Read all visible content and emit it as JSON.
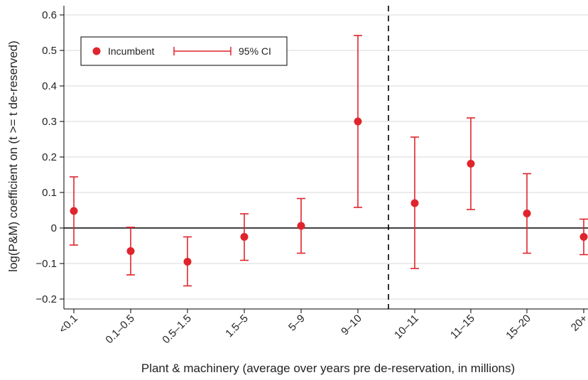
{
  "chart_data": {
    "type": "scatter",
    "title": "",
    "xlabel": "Plant & machinery (average over years pre de-reservation, in millions)",
    "ylabel": "log(P&M) coefficient on (t >= t de-reserved)",
    "categories": [
      "<0.1",
      "0.1–0.5",
      "0.5–1.5",
      "1.5–5",
      "5–9",
      "9–10",
      "10–11",
      "11–15",
      "15–20",
      "20+"
    ],
    "series": [
      {
        "name": "Incumbent",
        "values": [
          0.048,
          -0.065,
          -0.095,
          -0.025,
          0.006,
          0.3,
          0.07,
          0.181,
          0.041,
          -0.025
        ],
        "ci_low": [
          -0.048,
          -0.132,
          -0.163,
          -0.091,
          -0.071,
          0.058,
          -0.114,
          0.052,
          -0.071,
          -0.075
        ],
        "ci_high": [
          0.144,
          0.002,
          -0.025,
          0.04,
          0.083,
          0.542,
          0.256,
          0.31,
          0.153,
          0.025
        ]
      }
    ],
    "ci_label": "95% CI",
    "yticks": [
      -0.2,
      -0.1,
      0,
      0.1,
      0.2,
      0.3,
      0.4,
      0.5,
      0.6
    ],
    "ytick_labels": [
      "−0.2",
      "−0.1",
      "0",
      "0.1",
      "0.2",
      "0.3",
      "0.4",
      "0.5",
      "0.6"
    ],
    "ylim": [
      -0.23,
      0.63
    ],
    "zero_line": true,
    "vertical_line_between": [
      "9–10",
      "10–11"
    ],
    "grid": "horizontal",
    "legend_position": "top-left",
    "colors": {
      "marker": "#e0242c",
      "grid": "#d9d9d9",
      "axis": "#000000"
    }
  }
}
